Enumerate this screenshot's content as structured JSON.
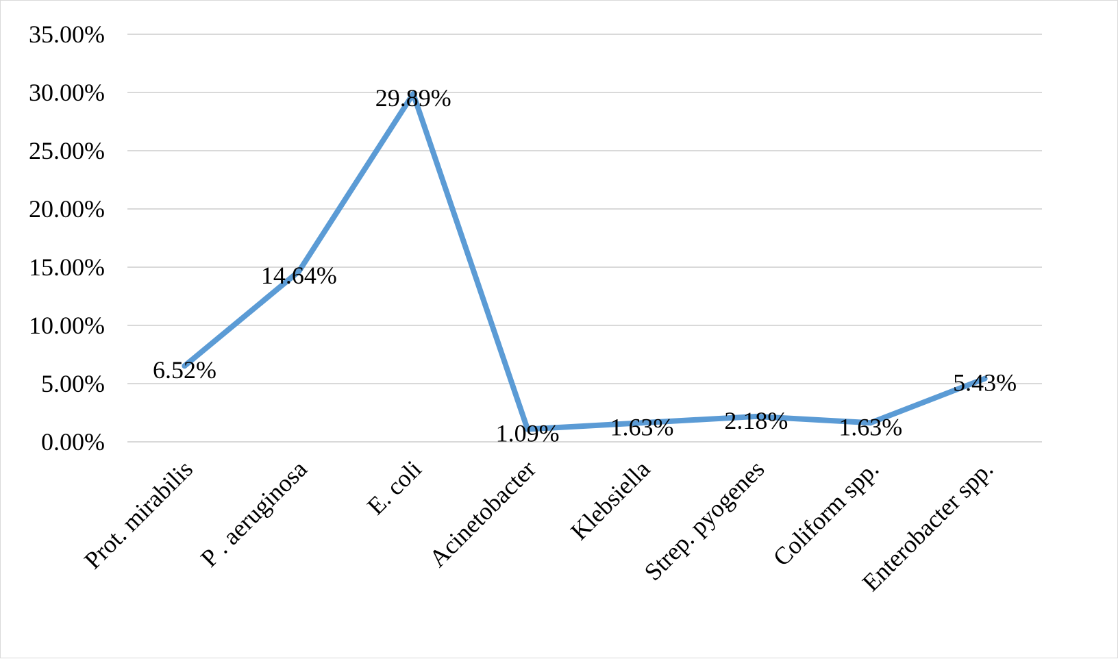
{
  "chart_data": {
    "type": "line",
    "title": "",
    "xlabel": "",
    "ylabel": "",
    "categories": [
      "Prot. mirabilis",
      "P . aeruginosa",
      "E. coli",
      "Acinetobacter",
      "Klebsiella",
      "Strep. pyogenes",
      "Coliform spp.",
      "Enterobacter spp."
    ],
    "series": [
      {
        "values": [
          6.52,
          14.64,
          29.89,
          1.09,
          1.63,
          2.18,
          1.63,
          5.43
        ],
        "data_labels": [
          "6.52%",
          "14.64%",
          "29.89%",
          "1.09%",
          "1.63%",
          "2.18%",
          "1.63%",
          "5.43%"
        ],
        "color": "#5b9bd5"
      }
    ],
    "ylim": [
      0,
      35
    ],
    "yticks": [
      0,
      5,
      10,
      15,
      20,
      25,
      30,
      35
    ],
    "ytick_labels": [
      "0.00%",
      "5.00%",
      "10.00%",
      "15.00%",
      "20.00%",
      "25.00%",
      "30.00%",
      "35.00%"
    ],
    "grid": true,
    "grid_color": "#d9d9d9",
    "legend": "none"
  }
}
